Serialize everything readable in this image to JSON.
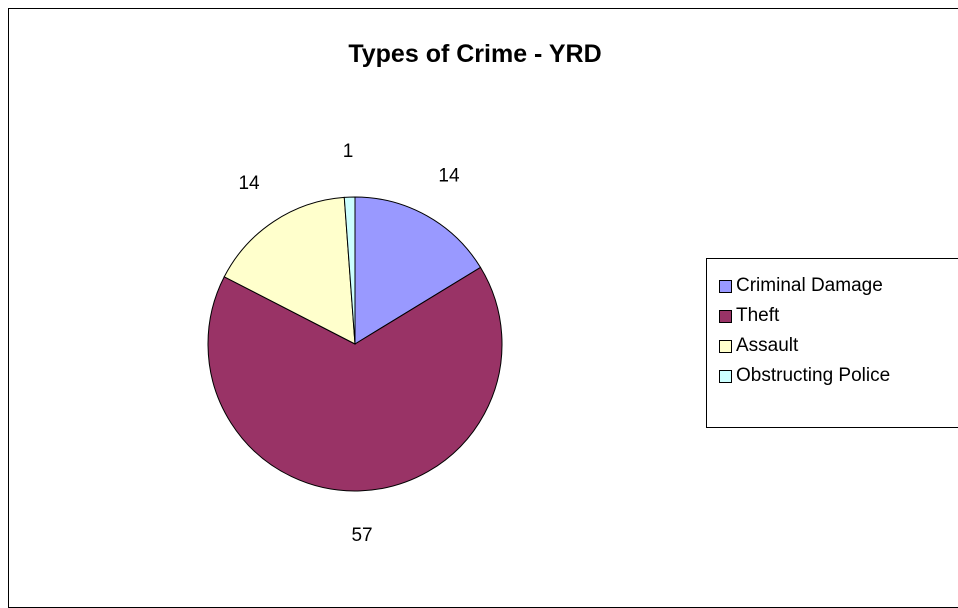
{
  "chart_data": {
    "type": "pie",
    "title": "Types of Crime - YRD",
    "categories": [
      "Criminal Damage",
      "Theft",
      "Assault",
      "Obstructing Police"
    ],
    "values": [
      14,
      57,
      14,
      1
    ],
    "colors": [
      "#9999ff",
      "#993366",
      "#ffffcc",
      "#ccffff"
    ],
    "legend_position": "right",
    "slice_border_color": "#000000"
  }
}
